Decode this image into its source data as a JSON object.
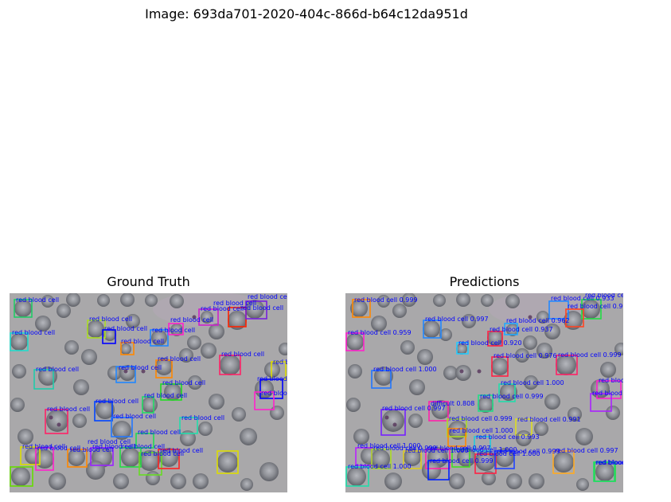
{
  "figure": {
    "title": "Image: 693da701-2020-404c-866d-b64c12da951d"
  },
  "panels": {
    "ground_truth": {
      "title": "Ground Truth"
    },
    "predictions": {
      "title": "Predictions"
    }
  },
  "detections": {
    "ground_truth": [
      {
        "label": "red blood cell",
        "color": "#22cc66"
      },
      {
        "label": "red blood cell",
        "color": "#22ddcc"
      },
      {
        "label": "red blood cell",
        "color": "#aadd22"
      },
      {
        "label": "red blood cell",
        "color": "#0000ff"
      },
      {
        "label": "red blood cell",
        "color": "#ff8800"
      },
      {
        "label": "red blood cell",
        "color": "#2288ff"
      },
      {
        "label": "red blood cell",
        "color": "#ff22cc"
      },
      {
        "label": "red blood cell",
        "color": "#cc22cc"
      },
      {
        "label": "red blood cell",
        "color": "#ff2200"
      },
      {
        "label": "red blood cell",
        "color": "#7722dd"
      },
      {
        "label": "red blood cell",
        "color": "#22ccaa"
      },
      {
        "label": "red blood cell",
        "color": "#ff2266"
      },
      {
        "label": "red blood cell",
        "color": "#dddd00"
      },
      {
        "label": "red blood cell",
        "color": "#2288ff"
      },
      {
        "label": "red blood cell",
        "color": "#ff8800"
      },
      {
        "label": "red blood cell",
        "color": "#22dd22"
      },
      {
        "label": "red blood cell",
        "color": "#0000ff"
      },
      {
        "label": "red blood cell",
        "color": "#22dd66"
      },
      {
        "label": "red blood cell",
        "color": "#0044ff"
      },
      {
        "label": "red blood cell",
        "color": "#ff22cc"
      },
      {
        "label": "red blood cell",
        "color": "#ff2266"
      },
      {
        "label": "red blood cell",
        "color": "#2277ff"
      },
      {
        "label": "red blood cell",
        "color": "#22ddaa"
      },
      {
        "label": "red blood cell",
        "color": "#22dd55"
      },
      {
        "label": "red blood cell",
        "color": "#dddd00"
      },
      {
        "label": "red blood cell",
        "color": "#ff22cc"
      },
      {
        "label": "red blood cell",
        "color": "#ff8800"
      },
      {
        "label": "red blood cell",
        "color": "#9922ff"
      },
      {
        "label": "red blood cell",
        "color": "#22dd44"
      },
      {
        "label": "red blood cell",
        "color": "#66dd22"
      },
      {
        "label": "red blood cell",
        "color": "#ff2222"
      },
      {
        "label": "red blood cell",
        "color": "#dddd00"
      },
      {
        "label": "red blood cell",
        "color": "#66dd00"
      }
    ],
    "predictions": [
      {
        "label": "red blood cell 0.999",
        "color": "#ff8800"
      },
      {
        "label": "red blood cell 0.959",
        "color": "#ff22cc"
      },
      {
        "label": "red blood cell 0.997",
        "color": "#2288ff"
      },
      {
        "label": "red blood cell 0.920",
        "color": "#22ccff"
      },
      {
        "label": "red blood cell 0.937",
        "color": "#ff2244"
      },
      {
        "label": "red blood cell 0.962",
        "color": "#22aaff"
      },
      {
        "label": "red blood cell 0.933",
        "color": "#2288ff"
      },
      {
        "label": "red blood cell 0.998",
        "color": "#22dd44"
      },
      {
        "label": "red blood cell 0.999",
        "color": "#ff4422"
      },
      {
        "label": "red blood cell 0.976",
        "color": "#ff2244"
      },
      {
        "label": "red blood cell 0.999",
        "color": "#ff2266"
      },
      {
        "label": "red blood cell 1.000",
        "color": "#2277ff"
      },
      {
        "label": "red blood cell 1.000",
        "color": "#22ddaa"
      },
      {
        "label": "red blood cell 0.991",
        "color": "#ff22cc"
      },
      {
        "label": "red blood cell 0.983",
        "color": "#aa22ff"
      },
      {
        "label": "red blood cell 0.999",
        "color": "#22dd88"
      },
      {
        "label": "red blood cell 0.997",
        "color": "#ff22aa"
      },
      {
        "label": "difficult 0.808",
        "color": "#7722ff"
      },
      {
        "label": "red blood cell 0.999",
        "color": "#aadd22"
      },
      {
        "label": "red blood cell 0.991",
        "color": "#dddd22"
      },
      {
        "label": "red blood cell 1.000",
        "color": "#ff8800"
      },
      {
        "label": "red blood cell 0.993",
        "color": "#22ccdd"
      },
      {
        "label": "red blood cell 1.000",
        "color": "#bb22ff"
      },
      {
        "label": "red blood cell 0.999",
        "color": "#aadd22"
      },
      {
        "label": "red blood cell 1.000",
        "color": "#ddcc22"
      },
      {
        "label": "red blood cell 0.997",
        "color": "#ff22aa"
      },
      {
        "label": "red blood cell 1.000",
        "color": "#ff2244"
      },
      {
        "label": "red blood cell 0.999",
        "color": "#2244ff"
      },
      {
        "label": "red blood cell 0.997",
        "color": "#ffaa22"
      },
      {
        "label": "red blood cell 1.000",
        "color": "#22ddaa"
      },
      {
        "label": "red blood cell 1.000",
        "color": "#22dd44"
      },
      {
        "label": "red blood cell 0.999",
        "color": "#0022ff"
      },
      {
        "label": "red blood cell 1.000",
        "color": "#44dd22"
      },
      {
        "label": "red blood cell 1.000",
        "color": "#22dd66"
      }
    ]
  }
}
